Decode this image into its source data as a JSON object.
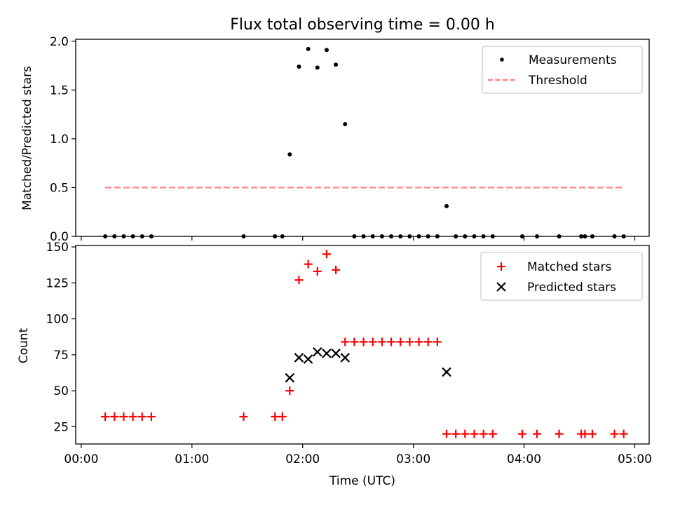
{
  "chart_data": [
    {
      "type": "scatter",
      "title": "Flux total observing time = 0.00 h",
      "xlabel": "",
      "ylabel": "Matched/Predicted stars",
      "xlim_hours": [
        -0.05,
        5.13
      ],
      "ylim": [
        0,
        2.02
      ],
      "yticks": [
        0.0,
        0.5,
        1.0,
        1.5,
        2.0
      ],
      "ytick_labels": [
        "0.0",
        "0.5",
        "1.0",
        "1.5",
        "2.0"
      ],
      "legend_position": "top-right",
      "series": [
        {
          "name": "Measurements",
          "marker": "dot",
          "color": "#000000",
          "points": [
            [
              "00:13",
              0
            ],
            [
              "00:18",
              0
            ],
            [
              "00:23",
              0
            ],
            [
              "00:28",
              0
            ],
            [
              "00:33",
              0
            ],
            [
              "00:38",
              0
            ],
            [
              "01:28",
              0
            ],
            [
              "01:45",
              0
            ],
            [
              "01:49",
              0
            ],
            [
              "01:53",
              0.84
            ],
            [
              "01:58",
              1.74
            ],
            [
              "02:03",
              1.92
            ],
            [
              "02:08",
              1.73
            ],
            [
              "02:13",
              1.91
            ],
            [
              "02:18",
              1.76
            ],
            [
              "02:23",
              1.15
            ],
            [
              "02:28",
              0
            ],
            [
              "02:33",
              0
            ],
            [
              "02:38",
              0
            ],
            [
              "02:43",
              0
            ],
            [
              "02:48",
              0
            ],
            [
              "02:53",
              0
            ],
            [
              "02:58",
              0
            ],
            [
              "03:03",
              0
            ],
            [
              "03:08",
              0
            ],
            [
              "03:13",
              0
            ],
            [
              "03:18",
              0.31
            ],
            [
              "03:23",
              0
            ],
            [
              "03:28",
              0
            ],
            [
              "03:33",
              0
            ],
            [
              "03:38",
              0
            ],
            [
              "03:43",
              0
            ],
            [
              "03:59",
              0
            ],
            [
              "04:07",
              0
            ],
            [
              "04:19",
              0
            ],
            [
              "04:31",
              0
            ],
            [
              "04:33",
              0
            ],
            [
              "04:37",
              0
            ],
            [
              "04:49",
              0
            ],
            [
              "04:54",
              0
            ]
          ]
        },
        {
          "name": "Threshold",
          "marker": "dashed-line",
          "color": "#ff7f7f",
          "points": [
            [
              "00:13",
              0.5
            ],
            [
              "04:54",
              0.5
            ]
          ]
        }
      ]
    },
    {
      "type": "scatter",
      "title": "",
      "xlabel": "Time (UTC)",
      "ylabel": "Count",
      "xlim_hours": [
        -0.05,
        5.13
      ],
      "ylim": [
        13,
        151
      ],
      "yticks": [
        25,
        50,
        75,
        100,
        125,
        150
      ],
      "ytick_labels": [
        "25",
        "50",
        "75",
        "100",
        "125",
        "150"
      ],
      "xticks_hours": [
        0,
        1,
        2,
        3,
        4,
        5
      ],
      "xtick_labels": [
        "00:00",
        "01:00",
        "02:00",
        "03:00",
        "04:00",
        "05:00"
      ],
      "legend_position": "top-right",
      "series": [
        {
          "name": "Matched stars",
          "marker": "plus",
          "color": "#ff0000",
          "points": [
            [
              "00:13",
              32
            ],
            [
              "00:18",
              32
            ],
            [
              "00:23",
              32
            ],
            [
              "00:28",
              32
            ],
            [
              "00:33",
              32
            ],
            [
              "00:38",
              32
            ],
            [
              "01:28",
              32
            ],
            [
              "01:45",
              32
            ],
            [
              "01:49",
              32
            ],
            [
              "01:53",
              50
            ],
            [
              "01:58",
              127
            ],
            [
              "02:03",
              138
            ],
            [
              "02:08",
              133
            ],
            [
              "02:13",
              145
            ],
            [
              "02:18",
              134
            ],
            [
              "02:23",
              84
            ],
            [
              "02:28",
              84
            ],
            [
              "02:33",
              84
            ],
            [
              "02:38",
              84
            ],
            [
              "02:43",
              84
            ],
            [
              "02:48",
              84
            ],
            [
              "02:53",
              84
            ],
            [
              "02:58",
              84
            ],
            [
              "03:03",
              84
            ],
            [
              "03:08",
              84
            ],
            [
              "03:13",
              84
            ],
            [
              "03:18",
              20
            ],
            [
              "03:23",
              20
            ],
            [
              "03:28",
              20
            ],
            [
              "03:33",
              20
            ],
            [
              "03:38",
              20
            ],
            [
              "03:43",
              20
            ],
            [
              "03:59",
              20
            ],
            [
              "04:07",
              20
            ],
            [
              "04:19",
              20
            ],
            [
              "04:31",
              20
            ],
            [
              "04:33",
              20
            ],
            [
              "04:37",
              20
            ],
            [
              "04:49",
              20
            ],
            [
              "04:54",
              20
            ]
          ]
        },
        {
          "name": "Predicted stars",
          "marker": "x",
          "color": "#000000",
          "points": [
            [
              "01:53",
              59
            ],
            [
              "01:58",
              73
            ],
            [
              "02:03",
              72
            ],
            [
              "02:08",
              77
            ],
            [
              "02:13",
              76
            ],
            [
              "02:18",
              76
            ],
            [
              "02:23",
              73
            ],
            [
              "03:18",
              63
            ]
          ]
        }
      ]
    }
  ]
}
